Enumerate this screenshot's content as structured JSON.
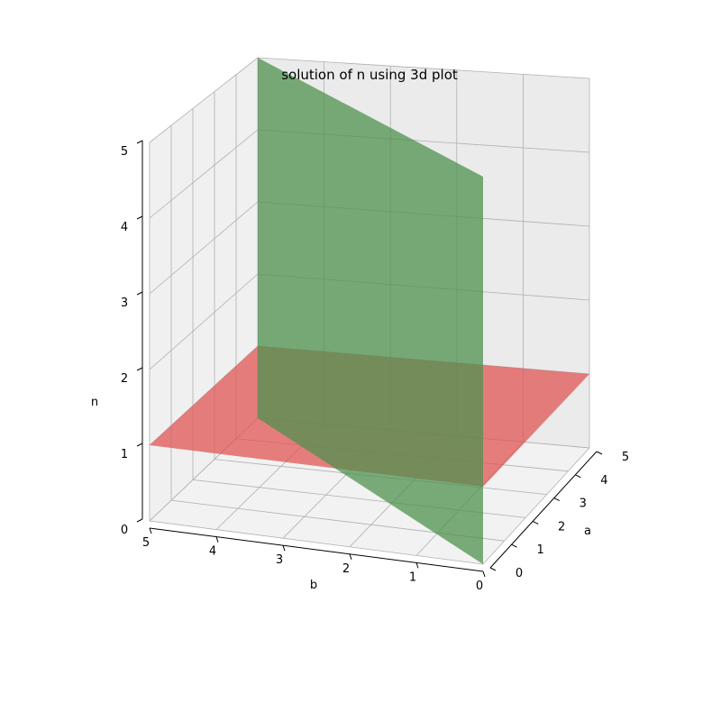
{
  "chart_data": {
    "type": "surface3d",
    "title": "solution of n using 3d plot",
    "axes": {
      "a": {
        "label": "a",
        "range": [
          0,
          5
        ],
        "ticks": [
          0,
          1,
          2,
          3,
          4,
          5
        ]
      },
      "b": {
        "label": "b",
        "range": [
          0,
          5
        ],
        "ticks": [
          0,
          1,
          2,
          3,
          4,
          5
        ]
      },
      "n": {
        "label": "n",
        "range": [
          0,
          5
        ],
        "ticks": [
          0,
          1,
          2,
          3,
          4,
          5
        ]
      }
    },
    "grid": true,
    "colors": {
      "green_surface": "#4f914f",
      "red_surface": "#e05555",
      "pane": "#f2f2f2",
      "grid": "#b0b0b0"
    },
    "surfaces": [
      {
        "color_key": "red_surface",
        "opacity": 0.75,
        "corners": [
          {
            "a": 0,
            "b": 0,
            "n": 1
          },
          {
            "a": 5,
            "b": 0,
            "n": 1
          },
          {
            "a": 5,
            "b": 5,
            "n": 1
          },
          {
            "a": 0,
            "b": 5,
            "n": 1
          }
        ]
      },
      {
        "color_key": "green_surface",
        "opacity": 0.75,
        "corners": [
          {
            "a": 0,
            "b": 0,
            "n": 0
          },
          {
            "a": 5,
            "b": 5,
            "n": 0
          },
          {
            "a": 5,
            "b": 5,
            "n": 5
          },
          {
            "a": 0,
            "b": 0,
            "n": 5
          }
        ]
      }
    ]
  }
}
